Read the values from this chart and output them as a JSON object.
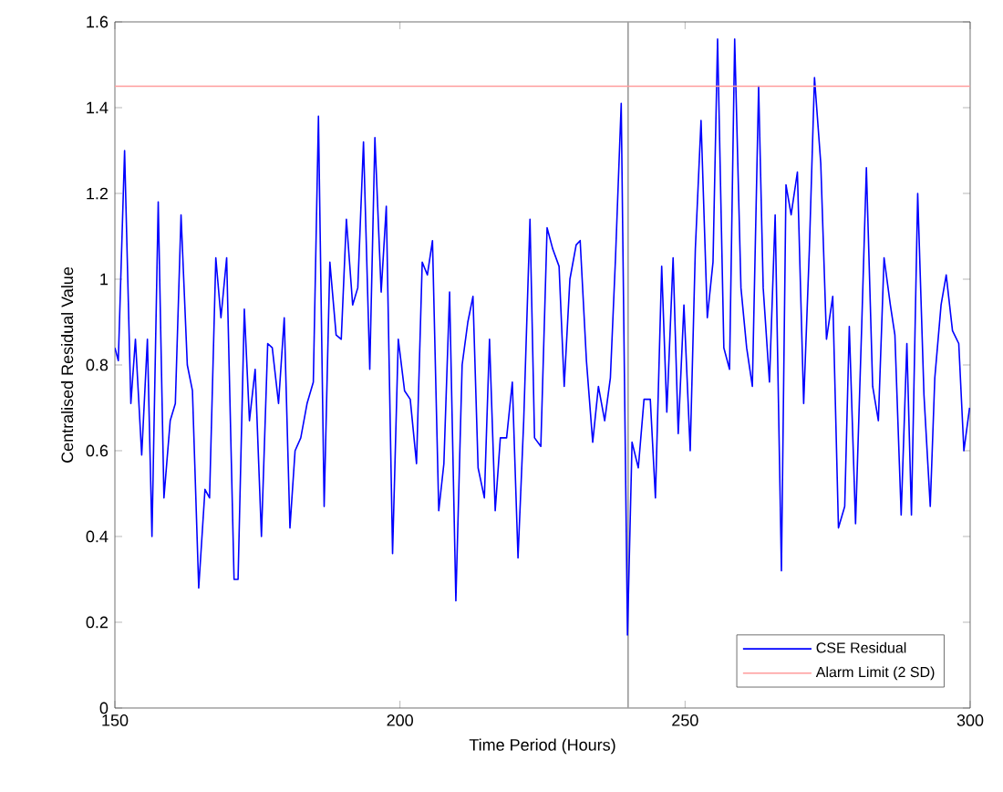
{
  "chart_data": {
    "type": "line",
    "xlabel": "Time Period (Hours)",
    "ylabel": "Centralised Residual Value",
    "xlim": [
      150,
      300
    ],
    "xticks": [
      150,
      200,
      250,
      300
    ],
    "ylim": [
      0,
      1.6
    ],
    "yticks": [
      0,
      0.2,
      0.4,
      0.6,
      0.8,
      1,
      1.2,
      1.4,
      1.6
    ],
    "legend": "bottom right",
    "grid": false,
    "marker": "none",
    "line_style": "solid",
    "series": [
      {
        "name": "CSE Residual",
        "color": "#0000ff",
        "x": [
          150,
          150.6,
          151.7,
          152.8,
          153.6,
          154.7,
          155.7,
          156.5,
          157.6,
          158.6,
          159.7,
          160.6,
          161.6,
          162.7,
          163.6,
          164.7,
          165.8,
          166.6,
          167.7,
          168.6,
          169.6,
          170.9,
          171.6,
          172.7,
          173.6,
          174.6,
          175.7,
          176.8,
          177.6,
          178.7,
          179.7,
          180.7,
          181.6,
          182.6,
          183.7,
          184.8,
          185.7,
          186.7,
          187.7,
          188.8,
          189.7,
          190.6,
          191.7,
          192.6,
          193.6,
          194.7,
          195.6,
          196.7,
          197.6,
          198.7,
          199.7,
          200.8,
          201.8,
          202.9,
          203.9,
          204.8,
          205.7,
          206.8,
          207.7,
          208.7,
          209.8,
          210.9,
          211.9,
          212.8,
          213.7,
          214.8,
          215.7,
          216.7,
          217.6,
          218.7,
          219.7,
          220.7,
          221.7,
          222.8,
          223.6,
          224.7,
          225.8,
          226.8,
          227.9,
          228.8,
          229.8,
          230.9,
          231.6,
          232.7,
          233.8,
          234.8,
          235.9,
          236.9,
          237.8,
          238.8,
          239.9,
          240.7,
          241.8,
          242.8,
          243.9,
          244.8,
          245.9,
          246.8,
          247.9,
          248.8,
          249.8,
          250.9,
          251.8,
          252.8,
          253.9,
          254.9,
          255.7,
          256.8,
          257.8,
          258.7,
          259.8,
          260.8,
          261.8,
          262.9,
          263.7,
          264.8,
          265.8,
          266.9,
          267.7,
          268.6,
          269.7,
          270.8,
          271.8,
          272.7,
          273.8,
          274.8,
          275.9,
          276.9,
          278.0,
          278.8,
          279.9,
          281.0,
          281.8,
          282.9,
          283.9,
          284.9,
          286.0,
          286.8,
          287.9,
          288.9,
          289.7,
          290.8,
          291.9,
          293.0,
          293.8,
          294.9,
          295.8,
          296.9,
          298.0,
          298.9,
          299.9
        ],
        "values": [
          0.84,
          0.81,
          1.3,
          0.71,
          0.86,
          0.59,
          0.86,
          0.4,
          1.18,
          0.49,
          0.67,
          0.71,
          1.15,
          0.8,
          0.74,
          0.28,
          0.51,
          0.49,
          1.05,
          0.91,
          1.05,
          0.3,
          0.3,
          0.93,
          0.67,
          0.79,
          0.4,
          0.85,
          0.84,
          0.71,
          0.91,
          0.42,
          0.6,
          0.63,
          0.71,
          0.76,
          1.38,
          0.47,
          1.04,
          0.87,
          0.86,
          1.14,
          0.94,
          0.98,
          1.32,
          0.79,
          1.33,
          0.97,
          1.17,
          0.36,
          0.86,
          0.74,
          0.72,
          0.57,
          1.04,
          1.01,
          1.09,
          0.46,
          0.57,
          0.97,
          0.25,
          0.8,
          0.9,
          0.96,
          0.56,
          0.49,
          0.86,
          0.46,
          0.63,
          0.63,
          0.76,
          0.35,
          0.67,
          1.14,
          0.63,
          0.61,
          1.12,
          1.07,
          1.03,
          0.75,
          1.0,
          1.08,
          1.09,
          0.81,
          0.62,
          0.75,
          0.67,
          0.77,
          1.05,
          1.41,
          0.17,
          0.62,
          0.56,
          0.72,
          0.72,
          0.49,
          1.03,
          0.69,
          1.05,
          0.64,
          0.94,
          0.6,
          1.07,
          1.37,
          0.91,
          1.04,
          1.56,
          0.84,
          0.79,
          1.56,
          0.98,
          0.84,
          0.75,
          1.45,
          0.98,
          0.76,
          1.15,
          0.32,
          1.22,
          1.15,
          1.25,
          0.71,
          1.07,
          1.47,
          1.27,
          0.86,
          0.96,
          0.42,
          0.47,
          0.89,
          0.43,
          0.9,
          1.26,
          0.75,
          0.67,
          1.05,
          0.94,
          0.87,
          0.45,
          0.85,
          0.45,
          1.2,
          0.73,
          0.47,
          0.77,
          0.94,
          1.01,
          0.88,
          0.85,
          0.6,
          0.7
        ]
      },
      {
        "name": "Alarm Limit (2 SD)",
        "color": "#ff9c9c",
        "x": [
          150,
          300
        ],
        "values": [
          1.45,
          1.45
        ]
      }
    ],
    "ref_lines": [
      {
        "axis": "x",
        "value": 240,
        "color": "#a0a0a0"
      }
    ]
  }
}
